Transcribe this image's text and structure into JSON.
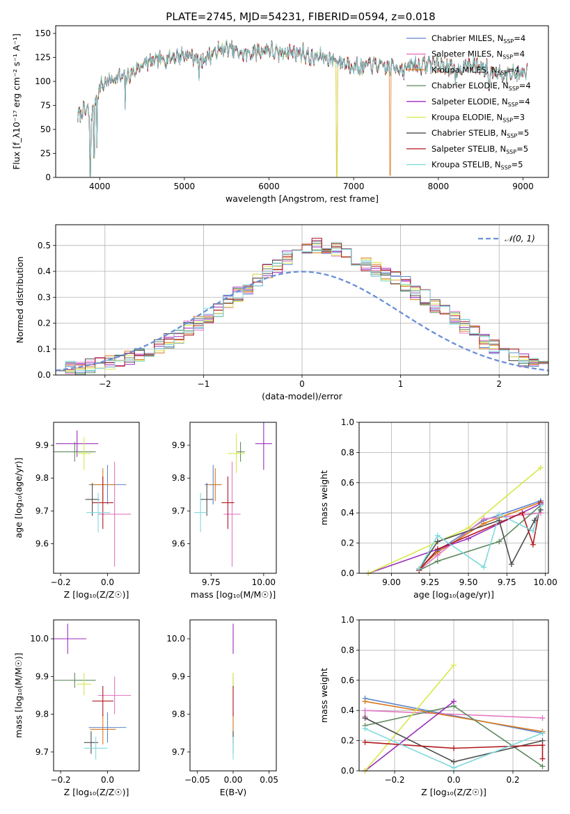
{
  "figure": {
    "title": "PLATE=2745, MJD=54231, FIBERID=0594, z=0.018"
  },
  "colors": {
    "Chabrier MILES": "#5b84cc",
    "Salpeter MILES": "#e377c2",
    "Kroupa MILES": "#d9781d",
    "Chabrier ELODIE": "#5e8a5e",
    "Salpeter ELODIE": "#9a2bbd",
    "Kroupa ELODIE": "#d8e84a",
    "Chabrier STELIB": "#4d4d4d",
    "Salpeter STELIB": "#b0191e",
    "Kroupa STELIB": "#7fd8dc",
    "gauss": "#6a8fd6"
  },
  "chart_data": [
    {
      "id": "spectrum",
      "type": "line",
      "xlabel": "wavelength [Angstrom, rest frame]",
      "ylabel": "Flux [f_λ10⁻¹⁷ erg cm⁻² s⁻¹ A⁻¹]",
      "xlim": [
        3480,
        9300
      ],
      "ylim": [
        0,
        158
      ],
      "xticks": [
        4000,
        5000,
        6000,
        7000,
        8000,
        9000
      ],
      "yticks": [
        0,
        25,
        50,
        75,
        100,
        125,
        150
      ],
      "legend_position": "top-right",
      "series_names": [
        "Chabrier MILES, N_SSP=4",
        "Salpeter MILES, N_SSP=4",
        "Kroupa MILES, N_SSP=4",
        "Chabrier ELODIE, N_SSP=4",
        "Salpeter ELODIE, N_SSP=4",
        "Kroupa ELODIE, N_SSP=3",
        "Chabrier STELIB, N_SSP=5",
        "Salpeter STELIB, N_SSP=5",
        "Kroupa STELIB, N_SSP=5"
      ],
      "continuum": {
        "x": [
          3740,
          3780,
          3850,
          3900,
          3950,
          4000,
          4100,
          4200,
          4300,
          4400,
          4500,
          4600,
          4700,
          4800,
          4900,
          5000,
          5100,
          5200,
          5300,
          5400,
          5500,
          5600,
          5700,
          5800,
          5900,
          6000,
          6100,
          6200,
          6300,
          6400,
          6500,
          6600,
          6700,
          6800,
          6900,
          7000,
          7100,
          7200,
          7300,
          7400,
          7500,
          7600,
          7700,
          7800,
          7900,
          8000,
          8200,
          8400,
          8600,
          8800,
          9050
        ],
        "y": [
          62,
          68,
          70,
          60,
          80,
          95,
          100,
          105,
          103,
          110,
          118,
          120,
          122,
          124,
          126,
          128,
          126,
          122,
          127,
          132,
          134,
          132,
          128,
          130,
          132,
          134,
          128,
          132,
          130,
          130,
          124,
          126,
          124,
          122,
          119,
          117,
          114,
          118,
          116,
          114,
          116,
          112,
          118,
          116,
          119,
          118,
          112,
          118,
          112,
          108,
          108
        ]
      },
      "dips": [
        {
          "x": 3890,
          "y": 0
        },
        {
          "x": 3934,
          "y": 20
        },
        {
          "x": 3969,
          "y": 28
        },
        {
          "x": 4300,
          "y": 70
        },
        {
          "x": 5175,
          "y": 100
        },
        {
          "x": 6800,
          "y": 0
        },
        {
          "x": 7430,
          "y": 0
        },
        {
          "x": 8200,
          "y": 95
        },
        {
          "x": 8600,
          "y": 90
        }
      ]
    },
    {
      "id": "residuals",
      "type": "line",
      "xlabel": "(data-model)/error",
      "ylabel": "Normed distribution",
      "xlim": [
        -2.5,
        2.5
      ],
      "ylim": [
        0,
        0.58
      ],
      "xticks": [
        -2,
        -1,
        0,
        1,
        2
      ],
      "yticks": [
        0.0,
        0.1,
        0.2,
        0.3,
        0.4,
        0.5
      ],
      "grid": true,
      "legend": "𝒩(0, 1)",
      "legend_position": "top-right",
      "bin_width": 0.1,
      "bin_start": -2.5,
      "histogram_shape": [
        0.02,
        0.025,
        0.03,
        0.035,
        0.04,
        0.05,
        0.055,
        0.07,
        0.08,
        0.095,
        0.11,
        0.13,
        0.15,
        0.18,
        0.2,
        0.23,
        0.25,
        0.28,
        0.31,
        0.34,
        0.37,
        0.4,
        0.42,
        0.45,
        0.47,
        0.49,
        0.5,
        0.49,
        0.48,
        0.47,
        0.45,
        0.43,
        0.41,
        0.39,
        0.37,
        0.35,
        0.32,
        0.3,
        0.27,
        0.25,
        0.22,
        0.19,
        0.16,
        0.13,
        0.11,
        0.09,
        0.08,
        0.06,
        0.05,
        0.04
      ]
    },
    {
      "id": "age-Z",
      "type": "scatter",
      "xlabel": "Z [log₁₀(Z/Z☉)]",
      "ylabel": "age  [log₁₀(age/yr)]",
      "xlim": [
        -0.23,
        0.135
      ],
      "ylim": [
        9.51,
        9.97
      ],
      "xticks": [
        -0.2,
        0.0
      ],
      "yticks": [
        9.6,
        9.7,
        9.8,
        9.9
      ],
      "points": [
        {
          "c": "Chabrier MILES",
          "x": 0.0,
          "y": 9.78,
          "ex": 0.08,
          "ey": 0.06
        },
        {
          "c": "Salpeter MILES",
          "x": 0.03,
          "y": 9.69,
          "ex": 0.07,
          "ey": 0.16
        },
        {
          "c": "Kroupa MILES",
          "x": -0.02,
          "y": 9.78,
          "ex": 0.055,
          "ey": 0.05
        },
        {
          "c": "Chabrier ELODIE",
          "x": -0.14,
          "y": 9.88,
          "ex": 0.09,
          "ey": 0.03
        },
        {
          "c": "Salpeter ELODIE",
          "x": -0.13,
          "y": 9.905,
          "ex": 0.09,
          "ey": 0.04
        },
        {
          "c": "Kroupa ELODIE",
          "x": -0.1,
          "y": 9.875,
          "ex": 0.03,
          "ey": 0.05
        },
        {
          "c": "Chabrier STELIB",
          "x": -0.065,
          "y": 9.735,
          "ex": 0.03,
          "ey": 0.05
        },
        {
          "c": "Salpeter STELIB",
          "x": -0.02,
          "y": 9.725,
          "ex": 0.045,
          "ey": 0.08
        },
        {
          "c": "Kroupa STELIB",
          "x": -0.04,
          "y": 9.695,
          "ex": 0.05,
          "ey": 0.06
        }
      ]
    },
    {
      "id": "age-mass",
      "type": "scatter",
      "xlabel": "mass [log₁₀(M/M☉)]",
      "ylabel": "",
      "xlim": [
        9.65,
        10.06
      ],
      "ylim": [
        9.51,
        9.97
      ],
      "xticks": [
        9.75,
        10.0
      ],
      "yticks": [
        9.6,
        9.7,
        9.8,
        9.9
      ],
      "points": [
        {
          "c": "Chabrier MILES",
          "x": 9.76,
          "y": 9.78,
          "ex": 0.04,
          "ey": 0.06
        },
        {
          "c": "Salpeter MILES",
          "x": 9.85,
          "y": 9.69,
          "ex": 0.04,
          "ey": 0.16
        },
        {
          "c": "Kroupa MILES",
          "x": 9.77,
          "y": 9.78,
          "ex": 0.03,
          "ey": 0.05
        },
        {
          "c": "Chabrier ELODIE",
          "x": 9.89,
          "y": 9.88,
          "ex": 0.02,
          "ey": 0.03
        },
        {
          "c": "Salpeter ELODIE",
          "x": 10.0,
          "y": 9.905,
          "ex": 0.04,
          "ey": 0.08
        },
        {
          "c": "Kroupa ELODIE",
          "x": 9.87,
          "y": 9.875,
          "ex": 0.04,
          "ey": 0.06
        },
        {
          "c": "Chabrier STELIB",
          "x": 9.73,
          "y": 9.735,
          "ex": 0.03,
          "ey": 0.05
        },
        {
          "c": "Salpeter STELIB",
          "x": 9.83,
          "y": 9.725,
          "ex": 0.03,
          "ey": 0.08
        },
        {
          "c": "Kroupa STELIB",
          "x": 9.7,
          "y": 9.695,
          "ex": 0.03,
          "ey": 0.06
        }
      ]
    },
    {
      "id": "weight-age",
      "type": "line",
      "xlabel": "age  [log₁₀(age/yr)]",
      "ylabel": "mass weight",
      "xlim": [
        8.79,
        10.02
      ],
      "ylim": [
        0,
        1
      ],
      "xticks": [
        9.0,
        9.25,
        9.5,
        9.75,
        10.0
      ],
      "yticks": [
        0.0,
        0.2,
        0.4,
        0.6,
        0.8,
        1.0
      ],
      "grid": true,
      "series": [
        {
          "c": "Chabrier MILES",
          "x": [
            9.18,
            9.3,
            9.6,
            9.97
          ],
          "y": [
            0.03,
            0.15,
            0.35,
            0.48
          ]
        },
        {
          "c": "Salpeter MILES",
          "x": [
            9.18,
            9.3,
            9.6,
            9.97
          ],
          "y": [
            0.02,
            0.12,
            0.36,
            0.4
          ]
        },
        {
          "c": "Kroupa MILES",
          "x": [
            9.18,
            9.3,
            9.6,
            9.97
          ],
          "y": [
            0.03,
            0.14,
            0.33,
            0.47
          ]
        },
        {
          "c": "Chabrier ELODIE",
          "x": [
            9.18,
            9.3,
            9.7,
            9.97
          ],
          "y": [
            0.02,
            0.08,
            0.21,
            0.45
          ]
        },
        {
          "c": "Salpeter ELODIE",
          "x": [
            8.85,
            9.5,
            9.97
          ],
          "y": [
            0.0,
            0.23,
            0.46
          ]
        },
        {
          "c": "Kroupa ELODIE",
          "x": [
            8.85,
            9.5,
            9.97
          ],
          "y": [
            0.0,
            0.3,
            0.7
          ]
        },
        {
          "c": "Chabrier STELIB",
          "x": [
            9.18,
            9.3,
            9.7,
            9.78,
            9.93,
            9.97
          ],
          "y": [
            0.03,
            0.21,
            0.35,
            0.06,
            0.35,
            0.42
          ]
        },
        {
          "c": "Salpeter STELIB",
          "x": [
            9.18,
            9.3,
            9.85,
            9.92,
            9.97
          ],
          "y": [
            0.02,
            0.16,
            0.4,
            0.19,
            0.47
          ]
        },
        {
          "c": "Kroupa STELIB",
          "x": [
            9.18,
            9.3,
            9.6,
            9.7,
            9.92,
            9.97
          ],
          "y": [
            0.03,
            0.25,
            0.04,
            0.39,
            0.28,
            0.45
          ]
        }
      ]
    },
    {
      "id": "mass-Z",
      "type": "scatter",
      "xlabel": "Z [log₁₀(Z/Z☉)]",
      "ylabel": "mass [log₁₀(M/M☉)]",
      "xlim": [
        -0.23,
        0.135
      ],
      "ylim": [
        9.65,
        10.05
      ],
      "xticks": [
        -0.2,
        0.0
      ],
      "yticks": [
        9.7,
        9.8,
        9.9,
        10.0
      ],
      "points": [
        {
          "c": "Chabrier MILES",
          "x": 0.0,
          "y": 9.765,
          "ex": 0.08,
          "ey": 0.04
        },
        {
          "c": "Salpeter MILES",
          "x": 0.03,
          "y": 9.85,
          "ex": 0.07,
          "ey": 0.05
        },
        {
          "c": "Kroupa MILES",
          "x": -0.02,
          "y": 9.76,
          "ex": 0.055,
          "ey": 0.04
        },
        {
          "c": "Chabrier ELODIE",
          "x": -0.14,
          "y": 9.89,
          "ex": 0.09,
          "ey": 0.02
        },
        {
          "c": "Salpeter ELODIE",
          "x": -0.17,
          "y": 10.0,
          "ex": 0.08,
          "ey": 0.04
        },
        {
          "c": "Kroupa ELODIE",
          "x": -0.1,
          "y": 9.88,
          "ex": 0.03,
          "ey": 0.03
        },
        {
          "c": "Chabrier STELIB",
          "x": -0.07,
          "y": 9.725,
          "ex": 0.03,
          "ey": 0.03
        },
        {
          "c": "Salpeter STELIB",
          "x": -0.02,
          "y": 9.835,
          "ex": 0.045,
          "ey": 0.04
        },
        {
          "c": "Kroupa STELIB",
          "x": -0.05,
          "y": 9.71,
          "ex": 0.05,
          "ey": 0.03
        }
      ]
    },
    {
      "id": "mass-ebv",
      "type": "scatter",
      "xlabel": "E(B-V)",
      "ylabel": "",
      "xlim": [
        -0.06,
        0.06
      ],
      "ylim": [
        9.65,
        10.05
      ],
      "xticks": [
        -0.05,
        0.0,
        0.05
      ],
      "yticks": [
        9.7,
        9.8,
        9.9,
        10.0
      ],
      "points": [
        {
          "c": "Chabrier MILES",
          "x": 0.0,
          "y": 9.765,
          "ex": 0.0,
          "ey": 0.04
        },
        {
          "c": "Salpeter MILES",
          "x": 0.0,
          "y": 9.85,
          "ex": 0.0,
          "ey": 0.05
        },
        {
          "c": "Kroupa MILES",
          "x": 0.0,
          "y": 9.76,
          "ex": 0.0,
          "ey": 0.04
        },
        {
          "c": "Chabrier ELODIE",
          "x": 0.0,
          "y": 9.89,
          "ex": 0.0,
          "ey": 0.02
        },
        {
          "c": "Salpeter ELODIE",
          "x": 0.0,
          "y": 10.0,
          "ex": 0.0,
          "ey": 0.04
        },
        {
          "c": "Kroupa ELODIE",
          "x": 0.0,
          "y": 9.88,
          "ex": 0.0,
          "ey": 0.03
        },
        {
          "c": "Chabrier STELIB",
          "x": 0.0,
          "y": 9.725,
          "ex": 0.0,
          "ey": 0.03
        },
        {
          "c": "Salpeter STELIB",
          "x": 0.0,
          "y": 9.835,
          "ex": 0.0,
          "ey": 0.04
        },
        {
          "c": "Kroupa STELIB",
          "x": 0.0,
          "y": 9.71,
          "ex": 0.0,
          "ey": 0.03
        }
      ]
    },
    {
      "id": "weight-Z",
      "type": "line",
      "xlabel": "Z [log₁₀(Z/Z☉)]",
      "ylabel": "mass weight",
      "xlim": [
        -0.32,
        0.32
      ],
      "ylim": [
        0,
        1
      ],
      "xticks": [
        -0.2,
        0.0,
        0.2
      ],
      "yticks": [
        0.0,
        0.2,
        0.4,
        0.6,
        0.8,
        1.0
      ],
      "grid": true,
      "series": [
        {
          "c": "Chabrier MILES",
          "x": [
            -0.3,
            0.3
          ],
          "y": [
            0.48,
            0.25
          ]
        },
        {
          "c": "Salpeter MILES",
          "x": [
            -0.3,
            -0.3,
            0.3
          ],
          "y": [
            0.36,
            0.4,
            0.35
          ]
        },
        {
          "c": "Kroupa MILES",
          "x": [
            -0.3,
            0.3
          ],
          "y": [
            0.46,
            0.26
          ]
        },
        {
          "c": "Chabrier ELODIE",
          "x": [
            -0.3,
            0.0,
            0.3
          ],
          "y": [
            0.3,
            0.43,
            0.03
          ]
        },
        {
          "c": "Salpeter ELODIE",
          "x": [
            -0.3,
            0.0
          ],
          "y": [
            0.0,
            0.46
          ]
        },
        {
          "c": "Kroupa ELODIE",
          "x": [
            -0.3,
            0.0
          ],
          "y": [
            0.0,
            0.7
          ]
        },
        {
          "c": "Chabrier STELIB",
          "x": [
            -0.3,
            0.0,
            0.3
          ],
          "y": [
            0.35,
            0.06,
            0.2
          ]
        },
        {
          "c": "Salpeter STELIB",
          "x": [
            -0.3,
            0.0,
            0.3,
            0.3
          ],
          "y": [
            0.19,
            0.15,
            0.17,
            0.08
          ]
        },
        {
          "c": "Kroupa STELIB",
          "x": [
            -0.3,
            0.0,
            0.3
          ],
          "y": [
            0.28,
            0.02,
            0.25
          ]
        }
      ]
    }
  ]
}
